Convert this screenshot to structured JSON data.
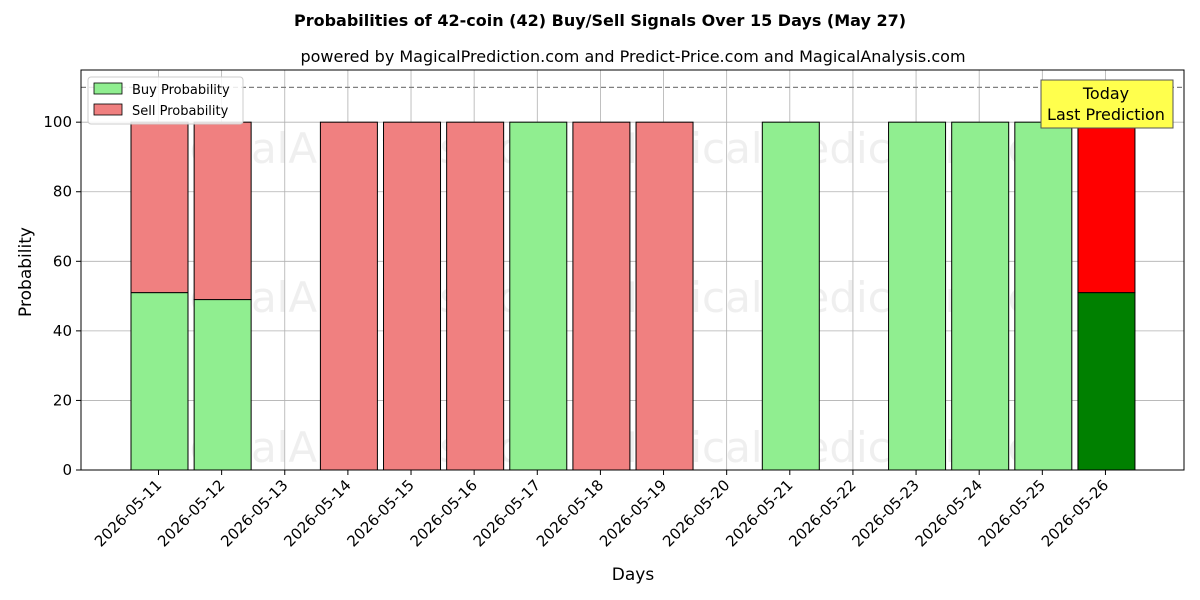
{
  "chart_data": {
    "type": "bar",
    "title": "Probabilities of 42-coin (42) Buy/Sell Signals Over 15 Days (May 27)",
    "subtitle": "powered by MagicalPrediction.com and Predict-Price.com and MagicalAnalysis.com",
    "xlabel": "Days",
    "ylabel": "Probability",
    "ylim": [
      0,
      115
    ],
    "yticks": [
      0,
      20,
      40,
      60,
      80,
      100
    ],
    "categories": [
      "2026-05-11",
      "2026-05-12",
      "2026-05-13",
      "2026-05-14",
      "2026-05-15",
      "2026-05-16",
      "2026-05-17",
      "2026-05-18",
      "2026-05-19",
      "2026-05-20",
      "2026-05-21",
      "2026-05-22",
      "2026-05-23",
      "2026-05-24",
      "2026-05-25",
      "2026-05-26"
    ],
    "series": [
      {
        "name": "Buy Probability",
        "color": "#90ee90",
        "values": [
          51,
          49,
          0,
          0,
          0,
          0,
          100,
          0,
          0,
          0,
          100,
          0,
          100,
          100,
          100,
          51
        ]
      },
      {
        "name": "Sell Probability",
        "color": "#f08080",
        "values": [
          49,
          51,
          0,
          100,
          100,
          100,
          0,
          100,
          100,
          0,
          0,
          0,
          0,
          0,
          0,
          49
        ]
      }
    ],
    "highlight": {
      "index": 15,
      "buy_color": "#008000",
      "sell_color": "#ff0000"
    },
    "reference_line": {
      "y": 110,
      "style": "dashed",
      "color": "#808080"
    },
    "annotation": {
      "lines": [
        "Today",
        "Last Prediction"
      ],
      "background": "#ffff4d"
    },
    "legend_position": "upper-left",
    "grid": true,
    "watermarks": [
      "MagicalAnalysis.com",
      "MagicalPrediction.com"
    ]
  }
}
